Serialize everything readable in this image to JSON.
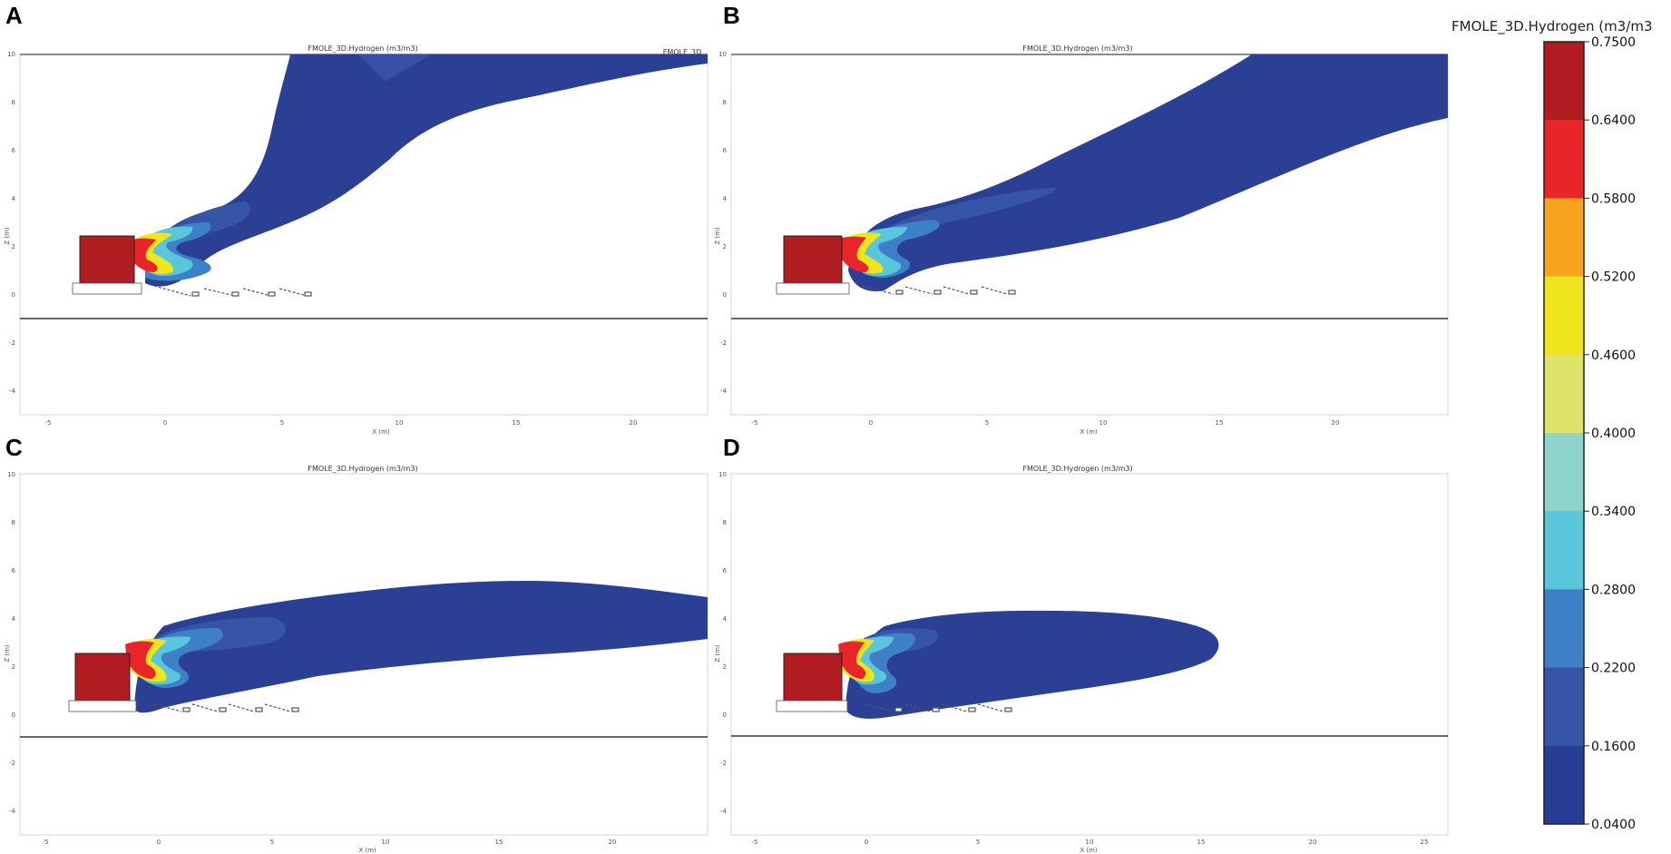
{
  "panels": [
    {
      "letter": "A",
      "title": "FMOLE_3D.Hydrogen (m3/m3)",
      "extra_title": "FMOLE_3D",
      "xlabel": "X (m)",
      "ylabel": "Z (m)",
      "xticks": [
        "-5",
        "0",
        "5",
        "10",
        "15",
        "20"
      ],
      "yticks": [
        "10",
        "8",
        "6",
        "4",
        "2",
        "0",
        "-2",
        "-4"
      ]
    },
    {
      "letter": "B",
      "title": "FMOLE_3D.Hydrogen (m3/m3)",
      "xlabel": "X (m)",
      "ylabel": "Z (m)",
      "xticks": [
        "-5",
        "0",
        "5",
        "10",
        "15",
        "20"
      ],
      "yticks": [
        "10",
        "8",
        "6",
        "4",
        "2",
        "0",
        "-2",
        "-4"
      ]
    },
    {
      "letter": "C",
      "title": "FMOLE_3D.Hydrogen (m3/m3)",
      "xlabel": "X (m)",
      "ylabel": "Z (m)",
      "xticks": [
        "-5",
        "0",
        "5",
        "10",
        "15",
        "20"
      ],
      "yticks": [
        "10",
        "8",
        "6",
        "4",
        "2",
        "0",
        "-2",
        "-4"
      ]
    },
    {
      "letter": "D",
      "title": "FMOLE_3D.Hydrogen (m3/m3)",
      "xlabel": "X (m)",
      "ylabel": "Z (m)",
      "xticks": [
        "-5",
        "0",
        "5",
        "10",
        "15",
        "20",
        "25"
      ],
      "yticks": [
        "10",
        "8",
        "6",
        "4",
        "2",
        "0",
        "-2",
        "-4"
      ]
    }
  ],
  "colorbar": {
    "title": "FMOLE_3D.Hydrogen (m3/m3",
    "levels": [
      "0.7500",
      "0.6400",
      "0.5800",
      "0.5200",
      "0.4600",
      "0.4000",
      "0.3400",
      "0.2800",
      "0.2200",
      "0.1600",
      "0.0400"
    ],
    "colors": [
      "#b01c22",
      "#e8262a",
      "#f8a41c",
      "#f0e41c",
      "#dee46a",
      "#8ed4cc",
      "#5ac6dc",
      "#3e80c8",
      "#3654a8",
      "#283e96"
    ]
  },
  "chart_data": {
    "type": "heatmap",
    "title": "FMOLE_3D.Hydrogen (m3/m3)",
    "xlabel": "X (m)",
    "ylabel": "Z (m)",
    "colorbar_levels": [
      0.75,
      0.64,
      0.58,
      0.52,
      0.46,
      0.4,
      0.34,
      0.28,
      0.22,
      0.16,
      0.04
    ],
    "panels": [
      {
        "letter": "A",
        "xlim": [
          -6,
          23
        ],
        "ylim": [
          -5,
          10
        ],
        "ground_z": -1,
        "plume_top_z": 10
      },
      {
        "letter": "B",
        "xlim": [
          -6,
          24
        ],
        "ylim": [
          -5,
          10
        ],
        "ground_z": -1,
        "plume_top_z": 10
      },
      {
        "letter": "C",
        "xlim": [
          -6,
          24
        ],
        "ylim": [
          -5,
          10
        ],
        "ground_z": -1,
        "plume_top_z": 5.5
      },
      {
        "letter": "D",
        "xlim": [
          -6,
          25
        ],
        "ylim": [
          -5,
          10
        ],
        "ground_z": -1,
        "plume_top_z": 4.3
      }
    ]
  }
}
